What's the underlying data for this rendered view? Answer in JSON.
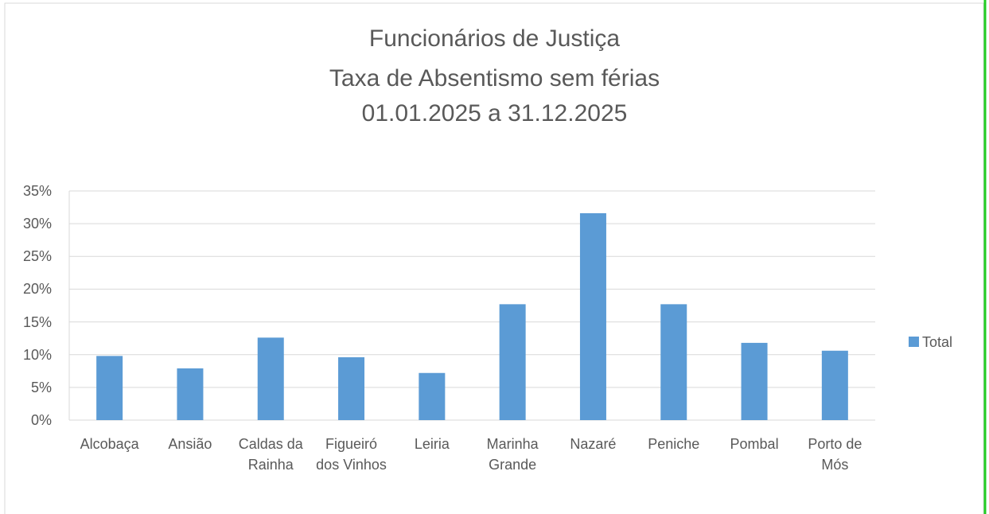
{
  "chart_data": {
    "type": "bar",
    "title": "Funcionários de Justiça",
    "subtitle": [
      "Taxa de Absentismo sem férias",
      "01.01.2025 a 31.12.2025"
    ],
    "categories": [
      "Alcobaça",
      "Ansião",
      "Caldas da Rainha",
      "Figueiró dos Vinhos",
      "Leiria",
      "Marinha Grande",
      "Nazaré",
      "Peniche",
      "Pombal",
      "Porto de Mós"
    ],
    "series": [
      {
        "name": "Total",
        "color": "#5b9bd5",
        "values": [
          9.8,
          7.9,
          12.6,
          9.6,
          7.2,
          17.7,
          31.6,
          17.7,
          11.8,
          10.6
        ]
      }
    ],
    "ylim": [
      0,
      35
    ],
    "yticks": [
      {
        "value": 0,
        "label": "0%"
      },
      {
        "value": 5,
        "label": "5%"
      },
      {
        "value": 10,
        "label": "10%"
      },
      {
        "value": 15,
        "label": "15%"
      },
      {
        "value": 20,
        "label": "20%"
      },
      {
        "value": 25,
        "label": "25%"
      },
      {
        "value": 30,
        "label": "30%"
      },
      {
        "value": 35,
        "label": "35%"
      }
    ],
    "grid": true,
    "legend": "right"
  }
}
